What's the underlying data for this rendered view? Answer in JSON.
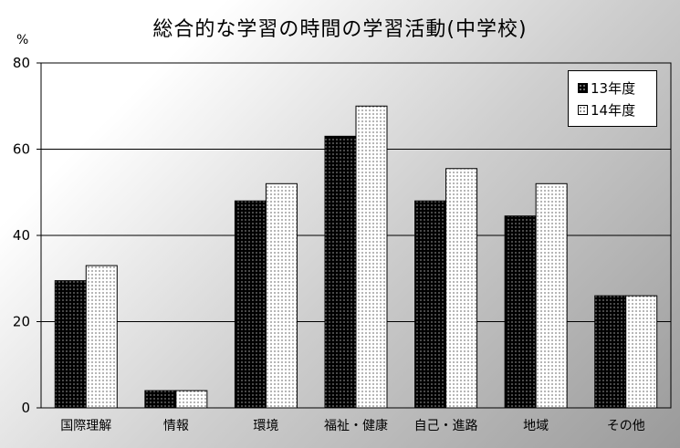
{
  "chart_data": {
    "type": "bar",
    "title": "総合的な学習の時間の学習活動(中学校)",
    "ylabel": "%",
    "ylim": [
      0,
      80
    ],
    "yticks": [
      0,
      20,
      40,
      60,
      80
    ],
    "grid": true,
    "legend_position": "top-right",
    "categories": [
      "国際理解",
      "情報",
      "環境",
      "福祉・健康",
      "自己・進路",
      "地域",
      "その他"
    ],
    "series": [
      {
        "name": "13年度",
        "values": [
          29.5,
          4,
          48,
          63,
          48,
          44.5,
          26
        ],
        "color": "#000000"
      },
      {
        "name": "14年度",
        "values": [
          33,
          4,
          52,
          70,
          55.5,
          52,
          26
        ],
        "color": "#ffffff"
      }
    ]
  }
}
